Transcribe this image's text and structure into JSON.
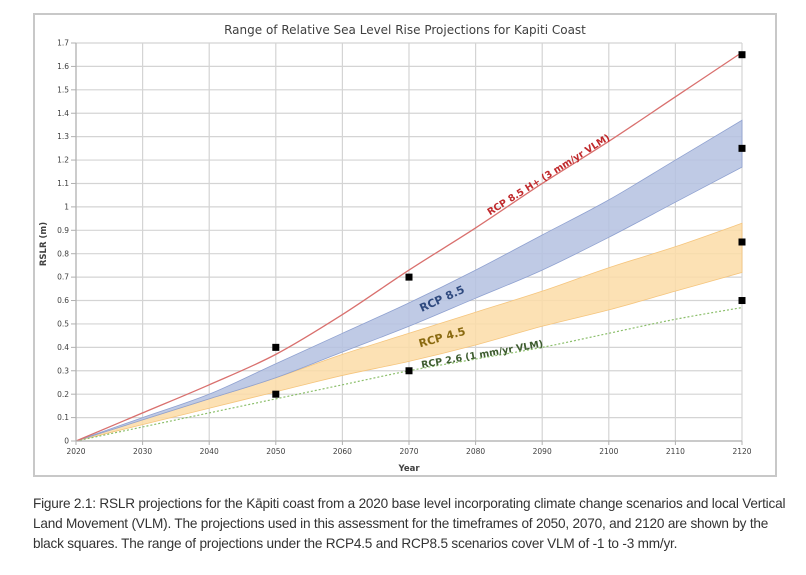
{
  "caption": "Figure 2.1: RSLR projections for the Kāpiti coast from a 2020 base level incorporating climate change scenarios and local Vertical Land Movement (VLM).  The projections used in this assessment for the timeframes of 2050, 2070, and 2120 are shown by the black squares.  The range of projections under the RCP4.5 and RCP8.5 scenarios cover VLM of -1 to -3 mm/yr.",
  "chart_data": {
    "type": "line",
    "title": "Range of Relative Sea Level Rise Projections for Kapiti Coast",
    "xlabel": "Year",
    "ylabel": "RSLR (m)",
    "xlim": [
      2020,
      2120
    ],
    "ylim": [
      0,
      1.7
    ],
    "grid": true,
    "xticks": [
      "2020",
      "2030",
      "2040",
      "2050",
      "2060",
      "2070",
      "2080",
      "2090",
      "2100",
      "2110",
      "2120"
    ],
    "yticks": [
      "0",
      "0.1",
      "0.2",
      "0.3",
      "0.4",
      "0.5",
      "0.6",
      "0.7",
      "0.8",
      "0.9",
      "1",
      "1.1",
      "1.2",
      "1.3",
      "1.4",
      "1.5",
      "1.6",
      "1.7"
    ],
    "x": [
      2020,
      2030,
      2040,
      2050,
      2060,
      2070,
      2080,
      2090,
      2100,
      2110,
      2120
    ],
    "series": [
      {
        "name": "RCP 8.5 H+ (3 mm/yr VLM)",
        "kind": "line",
        "color": "#d9706e",
        "label_color": "#c0282b",
        "values": [
          0,
          0.12,
          0.24,
          0.37,
          0.54,
          0.73,
          0.91,
          1.1,
          1.28,
          1.47,
          1.66
        ]
      },
      {
        "name": "RCP 8.5",
        "kind": "band",
        "color": "#b4c1e1",
        "edge": "#8fa1d0",
        "label_color": "#2f4a7f",
        "upper": [
          0,
          0.1,
          0.2,
          0.33,
          0.46,
          0.59,
          0.73,
          0.88,
          1.03,
          1.2,
          1.37
        ],
        "lower": [
          0,
          0.09,
          0.18,
          0.27,
          0.38,
          0.49,
          0.61,
          0.73,
          0.87,
          1.02,
          1.17
        ]
      },
      {
        "name": "RCP 4.5",
        "kind": "band",
        "color": "#fcdca7",
        "edge": "#f5c57d",
        "label_color": "#8a6a10",
        "upper": [
          0,
          0.09,
          0.18,
          0.27,
          0.37,
          0.46,
          0.55,
          0.64,
          0.74,
          0.83,
          0.93
        ],
        "lower": [
          0,
          0.07,
          0.14,
          0.21,
          0.28,
          0.34,
          0.41,
          0.49,
          0.56,
          0.64,
          0.72
        ]
      },
      {
        "name": "RCP 2.6 (1 mm/yr VLM)",
        "kind": "dotted",
        "color": "#8cbf6c",
        "label_color": "#3d5c2f",
        "values": [
          0,
          0.06,
          0.12,
          0.18,
          0.24,
          0.3,
          0.35,
          0.4,
          0.46,
          0.52,
          0.57
        ]
      }
    ],
    "markers": [
      {
        "x": 2050,
        "y": 0.4
      },
      {
        "x": 2050,
        "y": 0.2
      },
      {
        "x": 2070,
        "y": 0.7
      },
      {
        "x": 2070,
        "y": 0.3
      },
      {
        "x": 2120,
        "y": 1.65
      },
      {
        "x": 2120,
        "y": 1.25
      },
      {
        "x": 2120,
        "y": 0.85
      },
      {
        "x": 2120,
        "y": 0.6
      }
    ],
    "annotations": [
      {
        "text": "RCP 8.5 H+ (3 mm/yr VLM)",
        "series": 0,
        "at_x": 2091
      },
      {
        "text": "RCP 8.5",
        "series": 1,
        "at_x": 2075
      },
      {
        "text": "RCP 4.5",
        "series": 2,
        "at_x": 2075
      },
      {
        "text": "RCP 2.6 (1 mm/yr VLM)",
        "series": 3,
        "at_x": 2081
      }
    ]
  }
}
